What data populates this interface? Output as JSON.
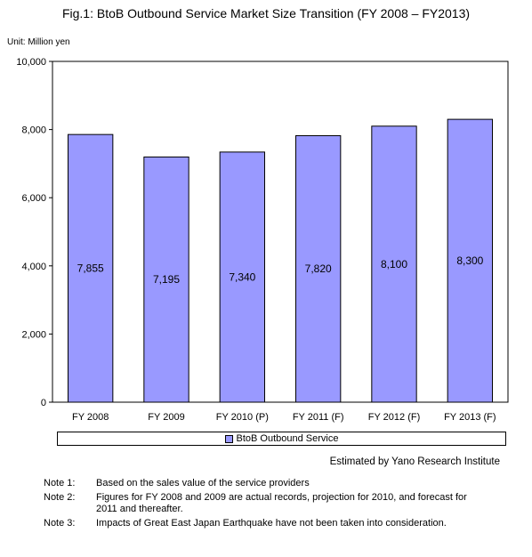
{
  "title": "Fig.1: BtoB Outbound Service Market Size Transition (FY 2008 – FY2013)",
  "unit": "Unit: Million yen",
  "source": "Estimated by Yano Research Institute",
  "notes": [
    {
      "label": "Note 1:",
      "text": "Based on the sales value of the service providers"
    },
    {
      "label": "Note 2:",
      "text": "Figures for FY 2008 and 2009 are actual records, projection for 2010, and forecast for 2011 and thereafter."
    },
    {
      "label": "Note 3:",
      "text": "Impacts of Great East Japan Earthquake have not been taken into consideration."
    }
  ],
  "chart_data": {
    "type": "bar",
    "categories": [
      "FY 2008",
      "FY 2009",
      "FY 2010 (P)",
      "FY 2011 (F)",
      "FY 2012 (F)",
      "FY 2013 (F)"
    ],
    "series": [
      {
        "name": "BtoB Outbound Service",
        "values": [
          7855,
          7195,
          7340,
          7820,
          8100,
          8300
        ],
        "color": "#9999ff"
      }
    ],
    "data_labels": [
      "7,855",
      "7,195",
      "7,340",
      "7,820",
      "8,100",
      "8,300"
    ],
    "yticks": [
      0,
      2000,
      4000,
      6000,
      8000,
      10000
    ],
    "ytick_labels": [
      "0",
      "2,000",
      "4,000",
      "6,000",
      "8,000",
      "10,000"
    ],
    "ylim": [
      0,
      10000
    ],
    "grid": false,
    "legend_position": "bottom"
  }
}
